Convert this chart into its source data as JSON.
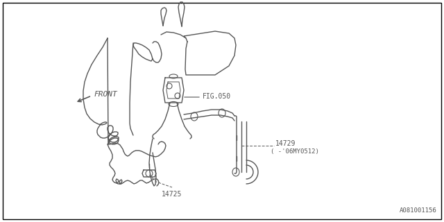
{
  "background_color": "#ffffff",
  "border_color": "#000000",
  "fig_width": 6.4,
  "fig_height": 3.2,
  "dpi": 100,
  "labels": {
    "fig050": "FIG.050",
    "part14725": "14725",
    "part14729": "14729",
    "part14729_note": "( -'06MY0512)",
    "front": "FRONT",
    "part_code": "A081001156"
  },
  "line_color": "#555555",
  "text_color": "#555555",
  "font_size": 7.0
}
